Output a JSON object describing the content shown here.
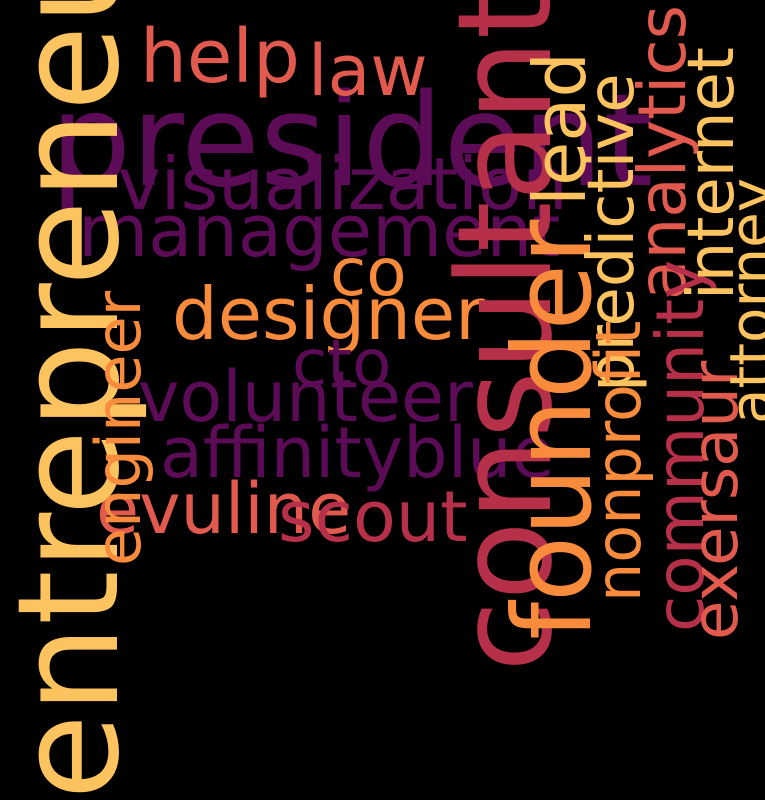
{
  "colors": {
    "background": "#000000",
    "dark_purple": "#5c0b57",
    "crimson": "#b7304a",
    "coral": "#e25a4e",
    "orange": "#f98b3c",
    "gold": "#fdc35f"
  },
  "words": [
    {
      "text": "president",
      "color": "#5c0b57"
    },
    {
      "text": "help",
      "color": "#e25a4e"
    },
    {
      "text": "law",
      "color": "#e25a4e"
    },
    {
      "text": "visualization",
      "color": "#5c0b57"
    },
    {
      "text": "management",
      "color": "#5c0b57"
    },
    {
      "text": "co",
      "color": "#f98b3c"
    },
    {
      "text": "designer",
      "color": "#f98b3c"
    },
    {
      "text": "cto",
      "color": "#5c0b57"
    },
    {
      "text": "volunteer",
      "color": "#5c0b57"
    },
    {
      "text": "affinityblue",
      "color": "#5c0b57"
    },
    {
      "text": "evuline",
      "color": "#e25a4e"
    },
    {
      "text": "scout",
      "color": "#b7304a"
    },
    {
      "text": "entrepreneur",
      "color": "#fdc35f"
    },
    {
      "text": "engineer",
      "color": "#f98b3c"
    },
    {
      "text": "consultant",
      "color": "#b7304a"
    },
    {
      "text": "founder",
      "color": "#f98b3c"
    },
    {
      "text": "lead",
      "color": "#fdc35f"
    },
    {
      "text": "predictive",
      "color": "#fdc35f"
    },
    {
      "text": "nonprofit",
      "color": "#f98b3c"
    },
    {
      "text": "analytics",
      "color": "#e25a4e"
    },
    {
      "text": "community",
      "color": "#b7304a"
    },
    {
      "text": "internet",
      "color": "#fdc35f"
    },
    {
      "text": "exersaur",
      "color": "#e25a4e"
    },
    {
      "text": "attorney",
      "color": "#fdc35f"
    }
  ]
}
